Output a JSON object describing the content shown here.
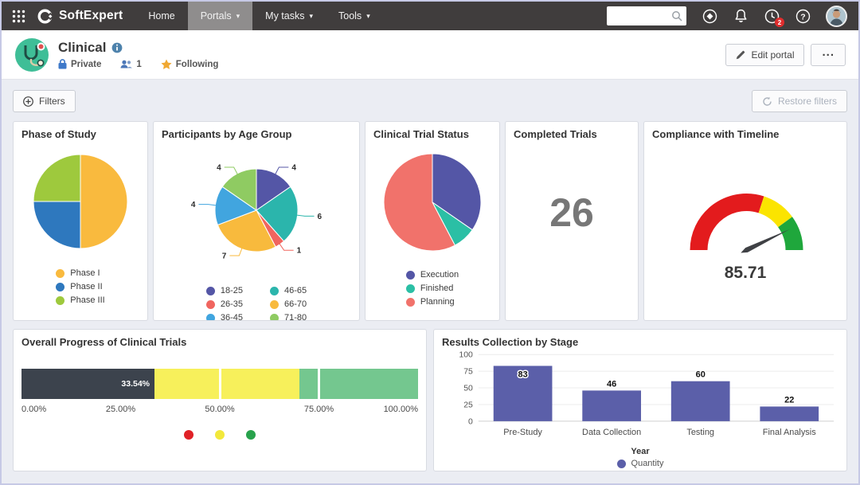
{
  "navbar": {
    "brand": "SoftExpert",
    "items": [
      {
        "label": "Home",
        "active": false
      },
      {
        "label": "Portals",
        "active": true
      },
      {
        "label": "My tasks",
        "active": false
      },
      {
        "label": "Tools",
        "active": false
      }
    ],
    "search": {
      "value": "",
      "placeholder": ""
    },
    "notifications_badge": "2"
  },
  "header": {
    "title": "Clinical",
    "privacy_label": "Private",
    "members_count": "1",
    "following_label": "Following",
    "edit_portal_label": "Edit portal",
    "more_label": "..."
  },
  "filters": {
    "filters_label": "Filters",
    "restore_label": "Restore filters"
  },
  "cards": [
    {
      "title": "Phase of Study",
      "chart": {
        "type": "pie",
        "size": 118,
        "legend_columns": 1,
        "slices": [
          {
            "label": "Phase I",
            "value": 50,
            "color": "#F9BA3E"
          },
          {
            "label": "Phase II",
            "value": 25,
            "color": "#2E78BE"
          },
          {
            "label": "Phase III",
            "value": 25,
            "color": "#9EC93D"
          }
        ],
        "legend": [
          {
            "label": "Phase I",
            "color": "#F9BA3E"
          },
          {
            "label": "Phase II",
            "color": "#2E78BE"
          },
          {
            "label": "Phase III",
            "color": "#9EC93D"
          }
        ]
      }
    },
    {
      "title": "Participants by Age Group",
      "chart": {
        "type": "pie",
        "size": 104,
        "callouts": true,
        "legend_columns": 2,
        "slices": [
          {
            "label": "18-25",
            "value": 4,
            "color": "#5456A6"
          },
          {
            "label": "46-65",
            "value": 6,
            "color": "#2BB5AC"
          },
          {
            "label": "26-35",
            "value": 1,
            "color": "#F0655F"
          },
          {
            "label": "66-70",
            "value": 7,
            "color": "#F8BA3D"
          },
          {
            "label": "36-45",
            "value": 4,
            "color": "#41A5DF"
          },
          {
            "label": "71-80",
            "value": 4,
            "color": "#8FCB62"
          }
        ],
        "legend": [
          {
            "label": "18-25",
            "color": "#5456A6"
          },
          {
            "label": "26-35",
            "color": "#F0655F"
          },
          {
            "label": "36-45",
            "color": "#41A5DF"
          },
          {
            "label": "46-65",
            "color": "#2BB5AC"
          },
          {
            "label": "66-70",
            "color": "#F8BA3D"
          },
          {
            "label": "71-80",
            "color": "#8FCB62"
          }
        ]
      }
    },
    {
      "title": "Clinical Trial Status",
      "chart": {
        "type": "pie",
        "size": 122,
        "legend_columns": 1,
        "slices": [
          {
            "label": "Execution",
            "value": 9,
            "color": "#5456A6"
          },
          {
            "label": "Finished",
            "value": 2,
            "color": "#2BBFA5"
          },
          {
            "label": "Planning",
            "value": 15,
            "color": "#F1726B"
          }
        ],
        "legend": [
          {
            "label": "Execution",
            "color": "#5456A6"
          },
          {
            "label": "Finished",
            "color": "#2BBFA5"
          },
          {
            "label": "Planning",
            "color": "#F1726B"
          }
        ]
      }
    },
    {
      "title": "Completed Trials",
      "chart": {
        "type": "number",
        "value": "26"
      }
    },
    {
      "title": "Compliance with Timeline",
      "chart": {
        "type": "gauge",
        "value": 85.71,
        "display": "85.71",
        "min": 0,
        "max": 100,
        "bands": [
          {
            "from": 0,
            "to": 60,
            "color": "#E31B1D"
          },
          {
            "from": 60,
            "to": 80,
            "color": "#FBE400"
          },
          {
            "from": 80,
            "to": 100,
            "color": "#1FA73C"
          }
        ]
      }
    },
    {
      "title": "Overall Progress of Clinical Trials",
      "chart": {
        "type": "bullet",
        "measure": 33.54,
        "measure_label": "33.54%",
        "measure_color": "#3C434D",
        "bands": [
          {
            "from": 0,
            "to": 70,
            "color": "#F7F05B"
          },
          {
            "from": 70,
            "to": 100,
            "color": "#74C78F"
          }
        ],
        "ticks": [
          "0.00%",
          "25.00%",
          "50.00%",
          "75.00%",
          "100.00%"
        ],
        "tick_lines": [
          50,
          75
        ],
        "legend_colors": [
          "#E02127",
          "#F2E83B",
          "#28A24C"
        ]
      }
    },
    {
      "title": "Results Collection by Stage",
      "chart": {
        "type": "bar",
        "categories": [
          "Pre-Study",
          "Data Collection",
          "Testing",
          "Final Analysis"
        ],
        "values": [
          83,
          46,
          60,
          22
        ],
        "bar_color": "#5B5FA9",
        "y_ticks": [
          0,
          25,
          50,
          75,
          100
        ],
        "ylim": [
          0,
          100
        ],
        "xlabel": "Year",
        "legend_label": "Quantity"
      }
    }
  ]
}
